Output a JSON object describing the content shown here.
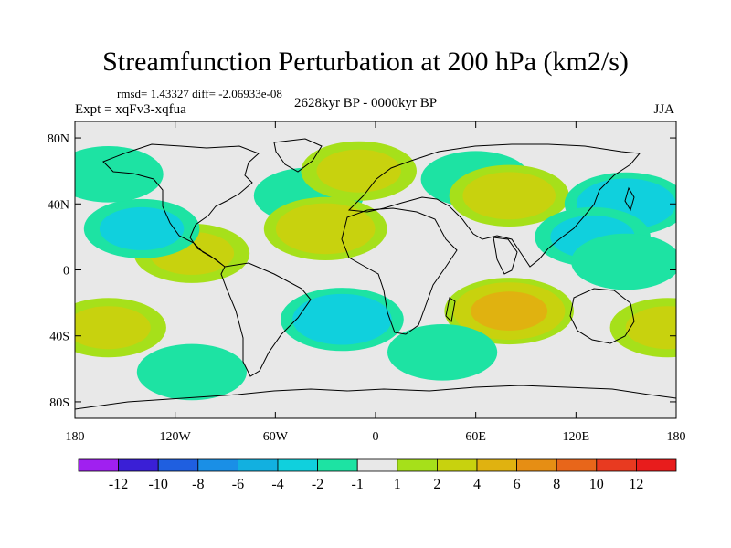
{
  "chart_data": {
    "type": "heatmap",
    "title": "Streamfunction Perturbation at 200 hPa (km2/s)",
    "stats_label": "rmsd= 1.43327 diff= -2.06933e-08",
    "left_label": "Expt = xqFv3-xqfua",
    "center_label": "2628kyr BP - 0000kyr BP",
    "right_label": "JJA",
    "projection": "cylindrical equidistant",
    "lon_range": [
      -180,
      180
    ],
    "lat_range": [
      -90,
      90
    ],
    "x_ticks": [
      {
        "value": -180,
        "label": "180"
      },
      {
        "value": -120,
        "label": "120W"
      },
      {
        "value": -60,
        "label": "60W"
      },
      {
        "value": 0,
        "label": "0"
      },
      {
        "value": 60,
        "label": "60E"
      },
      {
        "value": 120,
        "label": "120E"
      },
      {
        "value": 180,
        "label": "180"
      }
    ],
    "y_ticks": [
      {
        "value": 80,
        "label": "80N"
      },
      {
        "value": 40,
        "label": "40N"
      },
      {
        "value": 0,
        "label": "0"
      },
      {
        "value": -40,
        "label": "40S"
      },
      {
        "value": -80,
        "label": "80S"
      }
    ],
    "colorbar": {
      "levels": [
        "-12",
        "-10",
        "-8",
        "-6",
        "-4",
        "-2",
        "-1",
        "1",
        "2",
        "4",
        "6",
        "8",
        "10",
        "12"
      ],
      "colors": [
        "#a020f0",
        "#3a1fd6",
        "#1f5fe0",
        "#1a8fe6",
        "#12b0e0",
        "#10d0dd",
        "#1de3a3",
        "#e8e8e8",
        "#a6e01a",
        "#c8d20e",
        "#e0b210",
        "#e68e14",
        "#e8661a",
        "#e83a20",
        "#e81c1c"
      ]
    },
    "anomalies": [
      {
        "lon": 60,
        "lat": 55,
        "value": -1.5
      },
      {
        "lon": 80,
        "lat": 45,
        "value": 2.5
      },
      {
        "lon": 150,
        "lat": 40,
        "value": -3
      },
      {
        "lon": 130,
        "lat": 20,
        "value": -2
      },
      {
        "lon": -40,
        "lat": 45,
        "value": -1.5
      },
      {
        "lon": -10,
        "lat": 60,
        "value": 2
      },
      {
        "lon": -30,
        "lat": 25,
        "value": 3
      },
      {
        "lon": -110,
        "lat": 10,
        "value": 2
      },
      {
        "lon": -140,
        "lat": 25,
        "value": -2
      },
      {
        "lon": -160,
        "lat": 58,
        "value": -1.5
      },
      {
        "lon": -20,
        "lat": -30,
        "value": -3
      },
      {
        "lon": 80,
        "lat": -25,
        "value": 4.5
      },
      {
        "lon": 40,
        "lat": -50,
        "value": -1.5
      },
      {
        "lon": -160,
        "lat": -35,
        "value": 2
      },
      {
        "lon": 175,
        "lat": -35,
        "value": 2
      },
      {
        "lon": -110,
        "lat": -62,
        "value": -1.5
      },
      {
        "lon": 150,
        "lat": 5,
        "value": -1.5
      }
    ]
  }
}
